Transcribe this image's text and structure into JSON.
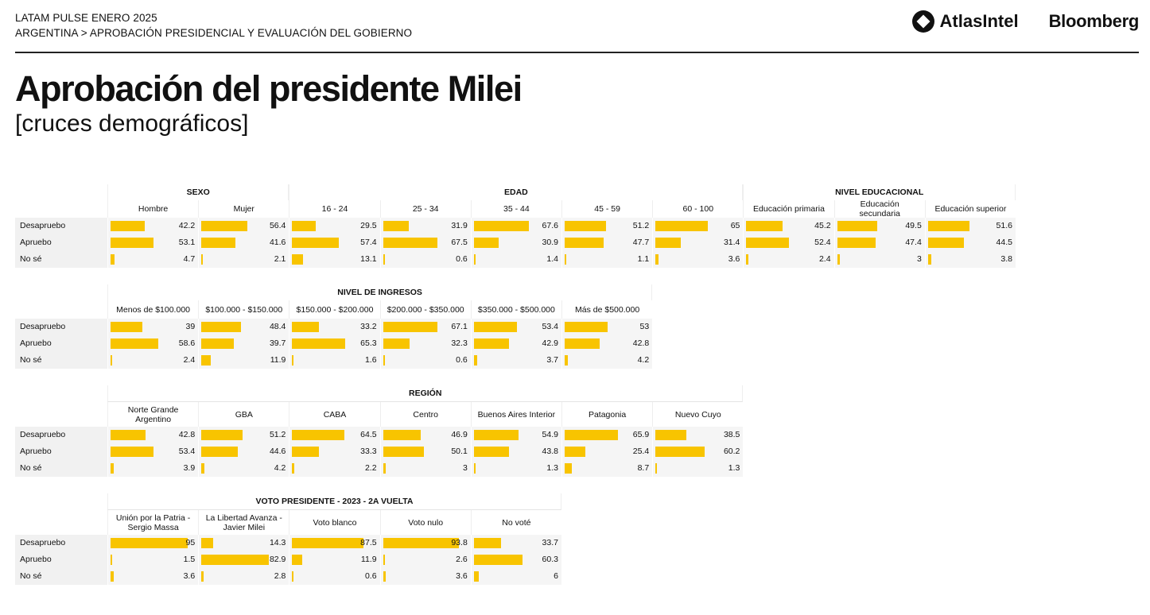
{
  "header": {
    "line1": "LATAM PULSE ENERO 2025",
    "line2": "ARGENTINA > APROBACIÓN PRESIDENCIAL Y  EVALUACIÓN DEL GOBIERNO",
    "logo1": "AtlasIntel",
    "logo2": "Bloomberg"
  },
  "title": "Aprobación del presidente Milei",
  "subtitle": "[cruces demográficos]",
  "colors": {
    "bar": "#f8c400",
    "rule": "#222222"
  },
  "chart_data": [
    {
      "type": "bar",
      "rows": [
        "Desapruebo",
        "Apruebo",
        "No sé"
      ],
      "groups": [
        {
          "label": "SEXO",
          "cols": [
            "Hombre",
            "Mujer"
          ]
        },
        {
          "label": "EDAD",
          "cols": [
            "16 - 24",
            "25 - 34",
            "35 - 44",
            "45 - 59",
            "60 - 100"
          ]
        },
        {
          "label": "NIVEL EDUCACIONAL",
          "cols": [
            "Educación primaria",
            "Educación secundaria",
            "Educación superior"
          ]
        }
      ],
      "values": [
        [
          42.2,
          56.4,
          29.5,
          31.9,
          67.6,
          51.2,
          65,
          45.2,
          49.5,
          51.6
        ],
        [
          53.1,
          41.6,
          57.4,
          67.5,
          30.9,
          47.7,
          31.4,
          52.4,
          47.4,
          44.5
        ],
        [
          4.7,
          2.1,
          13.1,
          0.6,
          1.4,
          1.1,
          3.6,
          2.4,
          3,
          3.8
        ]
      ]
    },
    {
      "type": "bar",
      "rows": [
        "Desapruebo",
        "Apruebo",
        "No sé"
      ],
      "groups": [
        {
          "label": "NIVEL DE INGRESOS",
          "cols": [
            "Menos de $100.000",
            "$100.000 - $150.000",
            "$150.000 - $200.000",
            "$200.000 - $350.000",
            "$350.000 - $500.000",
            "Más de $500.000"
          ]
        }
      ],
      "values": [
        [
          39,
          48.4,
          33.2,
          67.1,
          53.4,
          53
        ],
        [
          58.6,
          39.7,
          65.3,
          32.3,
          42.9,
          42.8
        ],
        [
          2.4,
          11.9,
          1.6,
          0.6,
          3.7,
          4.2
        ]
      ]
    },
    {
      "type": "bar",
      "rows": [
        "Desapruebo",
        "Apruebo",
        "No sé"
      ],
      "groups": [
        {
          "label": "REGIÓN",
          "cols": [
            "Norte Grande Argentino",
            "GBA",
            "CABA",
            "Centro",
            "Buenos Aires Interior",
            "Patagonia",
            "Nuevo Cuyo"
          ]
        }
      ],
      "values": [
        [
          42.8,
          51.2,
          64.5,
          46.9,
          54.9,
          65.9,
          38.5
        ],
        [
          53.4,
          44.6,
          33.3,
          50.1,
          43.8,
          25.4,
          60.2
        ],
        [
          3.9,
          4.2,
          2.2,
          3,
          1.3,
          8.7,
          1.3
        ]
      ]
    },
    {
      "type": "bar",
      "rows": [
        "Desapruebo",
        "Apruebo",
        "No sé"
      ],
      "groups": [
        {
          "label": "VOTO PRESIDENTE - 2023 - 2A VUELTA",
          "cols": [
            "Unión por la Patria - Sergio Massa",
            "La Libertad Avanza - Javier Milei",
            "Voto blanco",
            "Voto nulo",
            "No voté"
          ]
        }
      ],
      "values": [
        [
          95,
          14.3,
          87.5,
          93.8,
          33.7
        ],
        [
          1.5,
          82.9,
          11.9,
          2.6,
          60.3
        ],
        [
          3.6,
          2.8,
          0.6,
          3.6,
          6
        ]
      ]
    }
  ]
}
